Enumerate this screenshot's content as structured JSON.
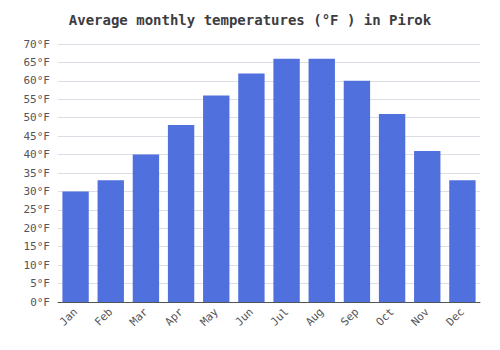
{
  "chart_data": {
    "type": "bar",
    "title": "Average monthly temperatures (°F ) in Pirok",
    "categories": [
      "Jan",
      "Feb",
      "Mar",
      "Apr",
      "May",
      "Jun",
      "Jul",
      "Aug",
      "Sep",
      "Oct",
      "Nov",
      "Dec"
    ],
    "values": [
      30,
      33,
      40,
      48,
      56,
      62,
      66,
      66,
      60,
      51,
      41,
      33
    ],
    "ylim": [
      0,
      70
    ],
    "yticks": [
      {
        "value": 0,
        "label": "0°F"
      },
      {
        "value": 5,
        "label": "5°F"
      },
      {
        "value": 10,
        "label": "10°F"
      },
      {
        "value": 15,
        "label": "15°F"
      },
      {
        "value": 20,
        "label": "20°F"
      },
      {
        "value": 25,
        "label": "25°F"
      },
      {
        "value": 30,
        "label": "30°F"
      },
      {
        "value": 35,
        "label": "35°F"
      },
      {
        "value": 40,
        "label": "40°F"
      },
      {
        "value": 45,
        "label": "45°F"
      },
      {
        "value": 50,
        "label": "50°F"
      },
      {
        "value": 55,
        "label": "55°F"
      },
      {
        "value": 60,
        "label": "60°F"
      },
      {
        "value": 65,
        "label": "65°F"
      },
      {
        "value": 70,
        "label": "70°F"
      }
    ],
    "grid": true
  }
}
